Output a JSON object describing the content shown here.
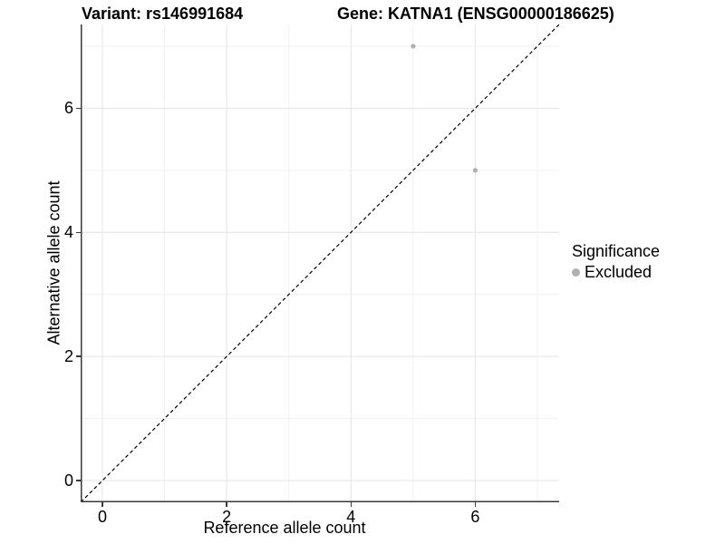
{
  "chart_data": {
    "type": "scatter",
    "titles": {
      "left": "Variant: rs146991684",
      "right": "Gene: KATNA1 (ENSG00000186625)"
    },
    "xlabel": "Reference allele count",
    "ylabel": "Alternative allele count",
    "xlim": [
      -0.35,
      7.35
    ],
    "ylim": [
      -0.35,
      7.35
    ],
    "x_ticks": [
      0,
      2,
      4,
      6
    ],
    "y_ticks": [
      0,
      2,
      4,
      6
    ],
    "x_minor_ticks": [
      1,
      3,
      5,
      7
    ],
    "y_minor_ticks": [
      1,
      3,
      5,
      7
    ],
    "grid": "on",
    "reference_line": {
      "type": "identity y=x",
      "style": "dashed",
      "color": "#000000"
    },
    "series": [
      {
        "name": "Excluded",
        "color": "#b0b0b0",
        "points": [
          [
            5,
            7
          ],
          [
            6,
            5
          ]
        ]
      }
    ],
    "legend": {
      "position": "right",
      "title": "Significance",
      "entries": [
        {
          "label": "Excluded",
          "color": "#b0b0b0"
        }
      ]
    },
    "colors": {
      "grid_major": "#e4e4e4",
      "grid_minor": "#f1f1f1",
      "axis_line": "#3a3a3a",
      "tick_text": "#000000"
    }
  }
}
